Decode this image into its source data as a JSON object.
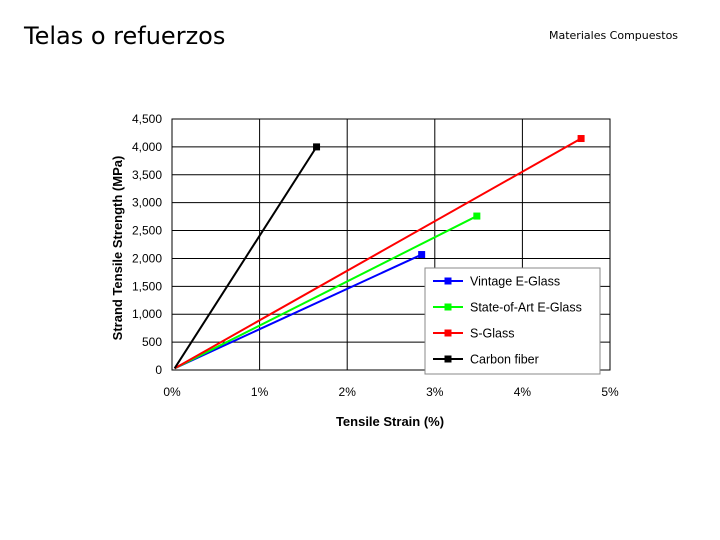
{
  "slide": {
    "title": "Telas o refuerzos",
    "header": "Materiales Compuestos"
  },
  "chart_data": {
    "type": "line",
    "xlabel": "Tensile Strain (%)",
    "ylabel": "Strand Tensile Strength (MPa)",
    "xlim": [
      0,
      5
    ],
    "ylim": [
      0,
      4500
    ],
    "xticks": [
      0,
      1,
      2,
      3,
      4,
      5
    ],
    "xtick_labels": [
      "0%",
      "1%",
      "2%",
      "3%",
      "4%",
      "5%"
    ],
    "yticks": [
      0,
      500,
      1000,
      1500,
      2000,
      2500,
      3000,
      3500,
      4000,
      4500
    ],
    "ytick_labels": [
      "0",
      "500",
      "1,000",
      "1,500",
      "2,000",
      "2,500",
      "3,000",
      "3,500",
      "4,000",
      "4,500"
    ],
    "grid": true,
    "legend_position": "bottom-right",
    "series": [
      {
        "name": "Vintage E-Glass",
        "color": "#0000ff",
        "x": [
          0.03,
          2.85
        ],
        "y": [
          30,
          2070
        ]
      },
      {
        "name": "State-of-Art E-Glass",
        "color": "#00ff00",
        "x": [
          0.03,
          3.48
        ],
        "y": [
          30,
          2760
        ]
      },
      {
        "name": "S-Glass",
        "color": "#ff0000",
        "x": [
          0.03,
          4.67
        ],
        "y": [
          30,
          4150
        ]
      },
      {
        "name": "Carbon fiber",
        "color": "#000000",
        "x": [
          0.03,
          1.65
        ],
        "y": [
          30,
          4000
        ]
      }
    ]
  }
}
